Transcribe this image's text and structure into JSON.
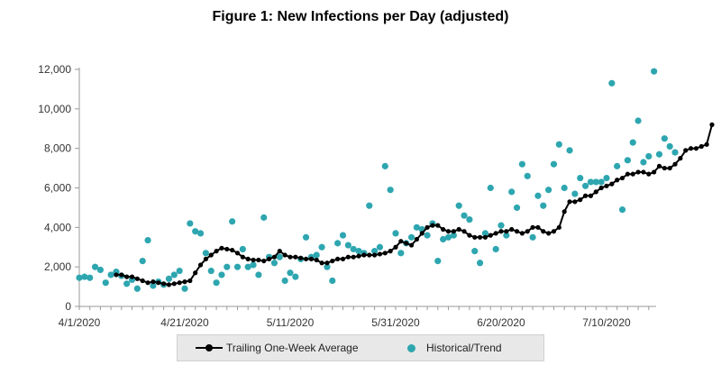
{
  "chart_data": {
    "type": "line",
    "title": "Figure 1: New Infections per Day (adjusted)",
    "xlabel": "",
    "ylabel": "",
    "ylim": [
      0,
      12000
    ],
    "y_ticks": [
      "0",
      "2,000",
      "4,000",
      "6,000",
      "8,000",
      "10,000",
      "12,000"
    ],
    "x_ticks": [
      "4/1/2020",
      "4/21/2020",
      "5/11/2020",
      "5/31/2020",
      "6/20/2020",
      "7/10/2020"
    ],
    "x_tick_days": [
      0,
      20,
      40,
      60,
      80,
      100
    ],
    "grid": false,
    "legend_position": "bottom",
    "colors": {
      "average": "#000000",
      "trend": "#2ea6b0"
    },
    "series": [
      {
        "name": "Trailing One-Week Average",
        "style": "line-with-markers",
        "start_day": 7,
        "values": [
          1600,
          1600,
          1500,
          1500,
          1400,
          1300,
          1200,
          1250,
          1200,
          1150,
          1100,
          1150,
          1200,
          1250,
          1300,
          1700,
          2100,
          2400,
          2600,
          2800,
          2950,
          2900,
          2850,
          2700,
          2500,
          2400,
          2350,
          2350,
          2300,
          2400,
          2500,
          2800,
          2600,
          2500,
          2500,
          2450,
          2400,
          2400,
          2350,
          2200,
          2200,
          2300,
          2400,
          2400,
          2500,
          2500,
          2550,
          2600,
          2600,
          2600,
          2650,
          2700,
          2800,
          3000,
          3300,
          3200,
          3100,
          3400,
          3700,
          4000,
          4100,
          4100,
          3900,
          3800,
          3800,
          3900,
          3800,
          3600,
          3500,
          3500,
          3500,
          3600,
          3700,
          3800,
          3800,
          3900,
          3800,
          3700,
          3800,
          4000,
          4000,
          3800,
          3700,
          3800,
          4000,
          4800,
          5300,
          5300,
          5400,
          5600,
          5600,
          5800,
          6000,
          6100,
          6200,
          6400,
          6500,
          6700,
          6700,
          6800,
          6800,
          6700,
          6800,
          7100,
          7000,
          7000,
          7200,
          7500,
          7900,
          8000,
          8000,
          8100,
          8200,
          9200
        ]
      },
      {
        "name": "Historical/Trend",
        "style": "scatter",
        "points": [
          [
            0,
            1450
          ],
          [
            1,
            1500
          ],
          [
            2,
            1450
          ],
          [
            3,
            2000
          ],
          [
            4,
            1850
          ],
          [
            5,
            1200
          ],
          [
            6,
            1600
          ],
          [
            7,
            1750
          ],
          [
            8,
            1550
          ],
          [
            9,
            1150
          ],
          [
            10,
            1350
          ],
          [
            11,
            900
          ],
          [
            12,
            2300
          ],
          [
            13,
            3350
          ],
          [
            14,
            1050
          ],
          [
            15,
            1250
          ],
          [
            16,
            1100
          ],
          [
            17,
            1400
          ],
          [
            18,
            1600
          ],
          [
            19,
            1800
          ],
          [
            20,
            900
          ],
          [
            21,
            4200
          ],
          [
            22,
            3800
          ],
          [
            23,
            3700
          ],
          [
            24,
            2700
          ],
          [
            25,
            1800
          ],
          [
            26,
            1200
          ],
          [
            27,
            1600
          ],
          [
            28,
            2000
          ],
          [
            29,
            4300
          ],
          [
            30,
            2000
          ],
          [
            31,
            2900
          ],
          [
            32,
            2000
          ],
          [
            33,
            2100
          ],
          [
            34,
            1600
          ],
          [
            35,
            4500
          ],
          [
            36,
            2500
          ],
          [
            37,
            2200
          ],
          [
            38,
            2500
          ],
          [
            39,
            1300
          ],
          [
            40,
            1700
          ],
          [
            41,
            1500
          ],
          [
            42,
            2400
          ],
          [
            43,
            3500
          ],
          [
            44,
            2500
          ],
          [
            45,
            2600
          ],
          [
            46,
            3000
          ],
          [
            47,
            2000
          ],
          [
            48,
            1300
          ],
          [
            49,
            3200
          ],
          [
            50,
            3600
          ],
          [
            51,
            3100
          ],
          [
            52,
            2900
          ],
          [
            53,
            2800
          ],
          [
            54,
            2700
          ],
          [
            55,
            5100
          ],
          [
            56,
            2800
          ],
          [
            57,
            3000
          ],
          [
            58,
            7100
          ],
          [
            59,
            5900
          ],
          [
            60,
            3700
          ],
          [
            61,
            2700
          ],
          [
            62,
            3200
          ],
          [
            63,
            3500
          ],
          [
            64,
            4000
          ],
          [
            65,
            3900
          ],
          [
            66,
            3600
          ],
          [
            67,
            4200
          ],
          [
            68,
            2300
          ],
          [
            69,
            3400
          ],
          [
            70,
            3500
          ],
          [
            71,
            3600
          ],
          [
            72,
            5100
          ],
          [
            73,
            4600
          ],
          [
            74,
            4400
          ],
          [
            75,
            2800
          ],
          [
            76,
            2200
          ],
          [
            77,
            3700
          ],
          [
            78,
            6000
          ],
          [
            79,
            2900
          ],
          [
            80,
            4100
          ],
          [
            81,
            3600
          ],
          [
            82,
            5800
          ],
          [
            83,
            5000
          ],
          [
            84,
            7200
          ],
          [
            85,
            6600
          ],
          [
            86,
            3500
          ],
          [
            87,
            5600
          ],
          [
            88,
            5100
          ],
          [
            89,
            5900
          ],
          [
            90,
            7200
          ],
          [
            91,
            8200
          ],
          [
            92,
            6000
          ],
          [
            93,
            7900
          ],
          [
            94,
            5700
          ],
          [
            95,
            6500
          ],
          [
            96,
            6100
          ],
          [
            97,
            6300
          ],
          [
            98,
            6300
          ],
          [
            99,
            6300
          ],
          [
            100,
            6500
          ],
          [
            101,
            11300
          ],
          [
            102,
            7100
          ],
          [
            103,
            4900
          ],
          [
            104,
            7400
          ],
          [
            105,
            8300
          ],
          [
            106,
            9400
          ],
          [
            107,
            7300
          ],
          [
            108,
            7600
          ],
          [
            109,
            11900
          ],
          [
            110,
            7700
          ],
          [
            111,
            8500
          ],
          [
            112,
            8100
          ],
          [
            113,
            7800
          ]
        ]
      }
    ]
  }
}
